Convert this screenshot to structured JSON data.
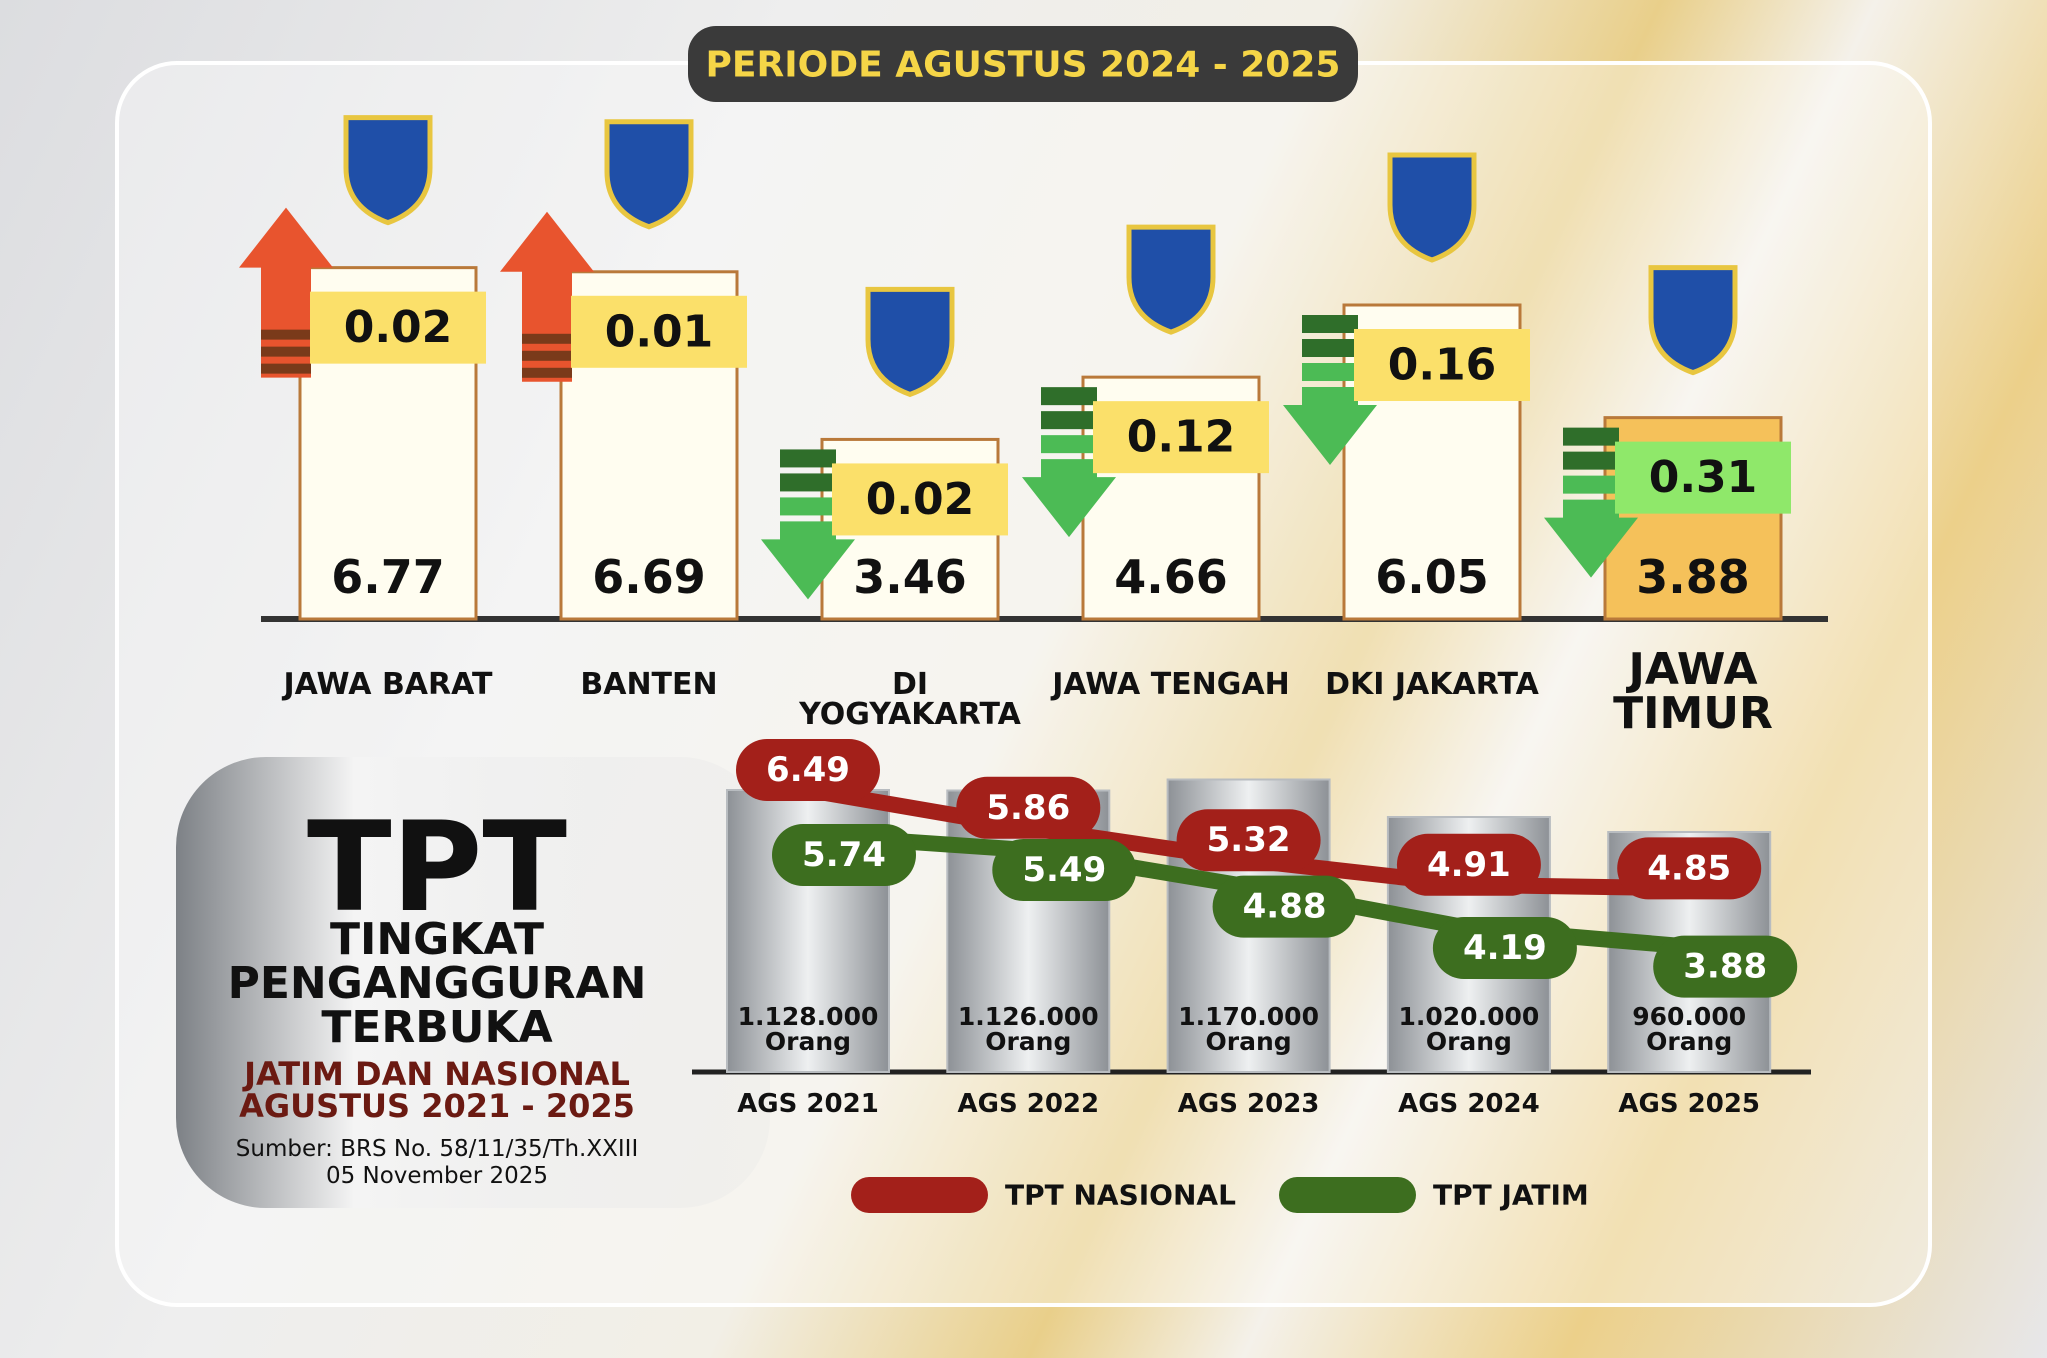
{
  "chart_data": [
    {
      "type": "bar",
      "title": "PERIODE AGUSTUS 2024 - 2025",
      "categories": [
        "JAWA BARAT",
        "BANTEN",
        "DI YOGYAKARTA",
        "JAWA TENGAH",
        "DKI JAKARTA",
        "JAWA TIMUR"
      ],
      "series": [
        {
          "values": [
            6.77,
            6.69,
            3.46,
            4.66,
            6.05,
            3.88
          ],
          "colors": [
            "#fffdf0",
            "#fffdf0",
            "#fffdf0",
            "#fffdf0",
            "#fffdf0",
            "#f5c15a"
          ]
        },
        {
          "values": [
            0.02,
            0.01,
            -0.02,
            -0.12,
            -0.16,
            -0.31
          ],
          "value_labels": [
            "0.02",
            "0.01",
            "0.02",
            "0.12",
            "0.16",
            "0.31"
          ],
          "colors": [
            "#fbe06a",
            "#fbe06a",
            "#fbe06a",
            "#fbe06a",
            "#fbe06a",
            "#8fe86a"
          ],
          "up_color": "#e8542e",
          "down_color": "#4cbb55"
        }
      ]
    },
    {
      "type": "line",
      "title": "TPT",
      "subtitle": "TINGKAT PENGANGGURAN TERBUKA",
      "note": "JATIM DAN NASIONAL AGUSTUS 2021 - 2025",
      "source": "Sumber: BRS No. 58/11/35/Th.XXIII",
      "date": "05 November 2025",
      "categories": [
        "AGS 2021",
        "AGS 2022",
        "AGS 2023",
        "AGS 2024",
        "AGS 2025"
      ],
      "series": [
        {
          "name": "TPT NASIONAL",
          "color": "#a3201a",
          "values": [
            6.49,
            5.86,
            5.32,
            4.91,
            4.85
          ]
        },
        {
          "name": "TPT JATIM",
          "color": "#3d6e1f",
          "values": [
            5.74,
            5.49,
            4.88,
            4.19,
            3.88
          ]
        },
        {
          "type": "bar",
          "color": "#b8bcc0",
          "values": [
            1128000,
            1126000,
            1170000,
            1020000,
            960000
          ],
          "value_labels": [
            "1.128.000 Orang",
            "1.126.000 Orang",
            "1.170.000 Orang",
            "1.020.000 Orang",
            "960.000 Orang"
          ]
        }
      ]
    }
  ]
}
